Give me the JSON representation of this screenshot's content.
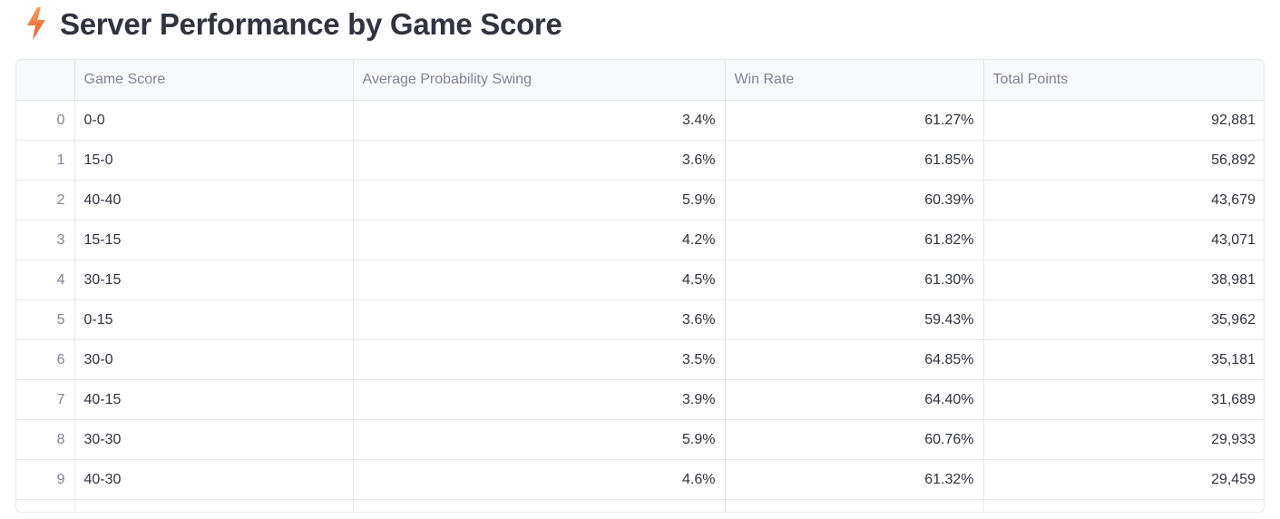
{
  "header": {
    "icon": "lightning-bolt-icon",
    "title": "Server Performance by Game Score"
  },
  "table": {
    "columns": [
      "",
      "Game Score",
      "Average Probability Swing",
      "Win Rate",
      "Total Points"
    ],
    "rows": [
      {
        "index": "0",
        "score": "0-0",
        "swing": "3.4%",
        "win_rate": "61.27%",
        "points": "92,881"
      },
      {
        "index": "1",
        "score": "15-0",
        "swing": "3.6%",
        "win_rate": "61.85%",
        "points": "56,892"
      },
      {
        "index": "2",
        "score": "40-40",
        "swing": "5.9%",
        "win_rate": "60.39%",
        "points": "43,679"
      },
      {
        "index": "3",
        "score": "15-15",
        "swing": "4.2%",
        "win_rate": "61.82%",
        "points": "43,071"
      },
      {
        "index": "4",
        "score": "30-15",
        "swing": "4.5%",
        "win_rate": "61.30%",
        "points": "38,981"
      },
      {
        "index": "5",
        "score": "0-15",
        "swing": "3.6%",
        "win_rate": "59.43%",
        "points": "35,962"
      },
      {
        "index": "6",
        "score": "30-0",
        "swing": "3.5%",
        "win_rate": "64.85%",
        "points": "35,181"
      },
      {
        "index": "7",
        "score": "40-15",
        "swing": "3.9%",
        "win_rate": "64.40%",
        "points": "31,689"
      },
      {
        "index": "8",
        "score": "30-30",
        "swing": "5.9%",
        "win_rate": "60.76%",
        "points": "29,933"
      },
      {
        "index": "9",
        "score": "40-30",
        "swing": "4.6%",
        "win_rate": "61.32%",
        "points": "29,459"
      }
    ]
  },
  "colors": {
    "icon_top": "#f6a04d",
    "icon_bottom": "#e8553a",
    "border": "#e6e7eb",
    "header_bg": "#f8f9fb",
    "text": "#31333f",
    "muted": "#808495"
  }
}
